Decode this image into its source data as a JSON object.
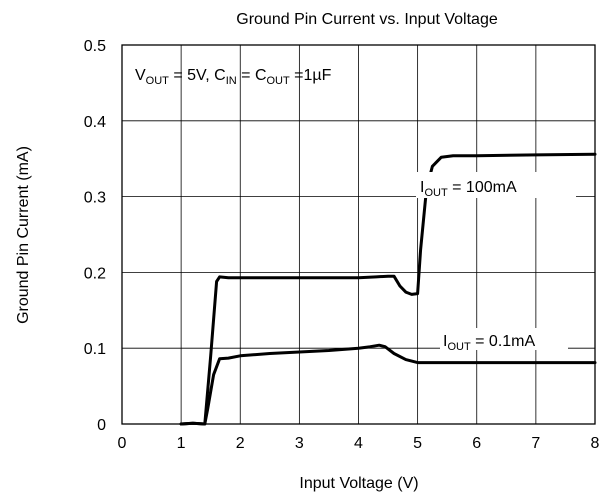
{
  "chart_data": {
    "type": "line",
    "title": "Ground Pin Current vs. Input Voltage",
    "xlabel": "Input Voltage (V)",
    "ylabel": "Ground Pin Current (mA)",
    "xlim": [
      0,
      8
    ],
    "ylim": [
      0,
      0.5
    ],
    "xticks": [
      "0",
      "1",
      "2",
      "3",
      "4",
      "5",
      "6",
      "7",
      "8"
    ],
    "yticks": [
      "0",
      "0.1",
      "0.2",
      "0.3",
      "0.4",
      "0.5"
    ],
    "grid": true,
    "line_color": "#000000",
    "conditions": {
      "v": "V",
      "v_sub": "OUT",
      "v_val": " = 5V, ",
      "cin": "C",
      "cin_sub": "IN",
      "eq": " = ",
      "cout": "C",
      "cout_sub": "OUT",
      "cout_val": " =1µF"
    },
    "series": [
      {
        "label_main": "I",
        "label_sub": "OUT",
        "label_val": " = 100mA",
        "x": [
          1.0,
          1.2,
          1.4,
          1.5,
          1.6,
          1.65,
          1.8,
          2.0,
          2.5,
          3.0,
          3.5,
          4.0,
          4.3,
          4.5,
          4.6,
          4.7,
          4.8,
          4.9,
          5.0,
          5.05,
          5.15,
          5.25,
          5.4,
          5.6,
          6.0,
          7.0,
          8.0
        ],
        "y": [
          0.0,
          0.001,
          0.0,
          0.09,
          0.188,
          0.194,
          0.193,
          0.193,
          0.193,
          0.193,
          0.193,
          0.193,
          0.194,
          0.195,
          0.195,
          0.182,
          0.174,
          0.171,
          0.172,
          0.23,
          0.31,
          0.34,
          0.352,
          0.354,
          0.354,
          0.355,
          0.356
        ]
      },
      {
        "label_main": "I",
        "label_sub": "OUT",
        "label_val": " = 0.1mA",
        "x": [
          1.0,
          1.2,
          1.4,
          1.45,
          1.55,
          1.65,
          1.8,
          2.0,
          2.5,
          3.0,
          3.5,
          4.0,
          4.2,
          4.35,
          4.45,
          4.6,
          4.8,
          5.0,
          6.0,
          7.0,
          8.0
        ],
        "y": [
          0.0,
          0.001,
          0.0,
          0.02,
          0.065,
          0.086,
          0.087,
          0.09,
          0.093,
          0.095,
          0.097,
          0.1,
          0.102,
          0.104,
          0.102,
          0.093,
          0.085,
          0.081,
          0.081,
          0.081,
          0.081
        ]
      }
    ]
  }
}
